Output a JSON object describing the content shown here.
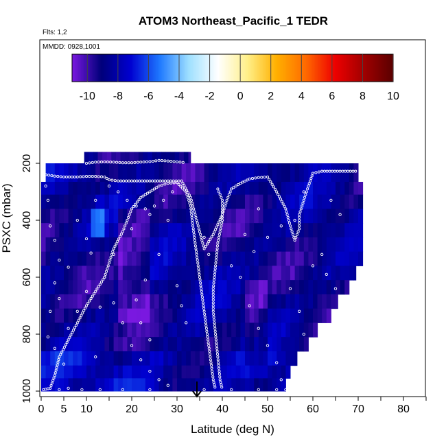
{
  "chart_data": {
    "type": "heatmap",
    "title": "ATOM3 Northeast_Pacific_1 TEDR",
    "subtitle_flights": "Flts: 1,2",
    "subtitle_dates": "MMDD: 0928,1001",
    "xlabel": "Latitude (deg N)",
    "ylabel": "PSXC (mbar)",
    "xlim": [
      0,
      85
    ],
    "ylim": [
      1000,
      100
    ],
    "x_ticks": [
      0,
      5,
      10,
      20,
      30,
      40,
      50,
      60,
      70,
      80
    ],
    "x_tick_labels": [
      "0",
      "5",
      "10",
      "20",
      "30",
      "40",
      "50",
      "60",
      "70",
      "80"
    ],
    "x_minor_ticks": [
      15,
      25,
      35,
      45,
      55,
      65,
      75,
      85
    ],
    "y_ticks": [
      200,
      400,
      600,
      800,
      1000
    ],
    "y_tick_labels": [
      "200",
      "400",
      "600",
      "800",
      "1000"
    ],
    "colorbar": {
      "range": [
        -11,
        10
      ],
      "ticks": [
        -10,
        -8,
        -6,
        -4,
        -2,
        0,
        2,
        4,
        6,
        8,
        10
      ],
      "tick_labels": [
        "-10",
        "-8",
        "-6",
        "-4",
        "-2",
        "0",
        "2",
        "4",
        "6",
        "8",
        "10"
      ],
      "colors": [
        "#7a18e0",
        "#00007a",
        "#0000d0",
        "#1e78ff",
        "#9ee0ff",
        "#ffffff",
        "#fff08a",
        "#ffb000",
        "#ff6a00",
        "#ee0000",
        "#a00000",
        "#5a0000"
      ]
    },
    "layers": [
      {
        "p": [
          160,
          200
        ],
        "xmax": 33,
        "xmin": 9.5
      },
      {
        "p": [
          200,
          265
        ],
        "xmax": 70,
        "xmin": 1
      },
      {
        "p": [
          265,
          310
        ],
        "xmax": 71
      },
      {
        "p": [
          310,
          360
        ],
        "xmax": 71
      },
      {
        "p": [
          360,
          410
        ],
        "xmax": 71
      },
      {
        "p": [
          410,
          460
        ],
        "xmax": 71
      },
      {
        "p": [
          460,
          510
        ],
        "xmax": 71
      },
      {
        "p": [
          510,
          560
        ],
        "xmax": 71
      },
      {
        "p": [
          560,
          610
        ],
        "xmax": 69.5
      },
      {
        "p": [
          610,
          660
        ],
        "xmax": 68
      },
      {
        "p": [
          660,
          710
        ],
        "xmax": 65.5
      },
      {
        "p": [
          710,
          760
        ],
        "xmax": 64
      },
      {
        "p": [
          760,
          810
        ],
        "xmax": 61
      },
      {
        "p": [
          810,
          860
        ],
        "xmax": 59
      },
      {
        "p": [
          860,
          910
        ],
        "xmax": 56.5
      },
      {
        "p": [
          910,
          955
        ],
        "xmax": 55
      },
      {
        "p": [
          955,
          1000
        ],
        "xmax": 54
      }
    ],
    "flight_tracks": [
      {
        "name": "flight-1-track",
        "points": [
          [
            0.5,
            995
          ],
          [
            2,
            990
          ],
          [
            3,
            945
          ],
          [
            4,
            880
          ],
          [
            6,
            820
          ],
          [
            8,
            760
          ],
          [
            10,
            700
          ],
          [
            12,
            650
          ],
          [
            14,
            600
          ],
          [
            15,
            550
          ],
          [
            16,
            500
          ],
          [
            18,
            440
          ],
          [
            19,
            400
          ],
          [
            20,
            360
          ],
          [
            22,
            320
          ],
          [
            24,
            300
          ],
          [
            26,
            280
          ],
          [
            28,
            270
          ],
          [
            30,
            268
          ],
          [
            32,
            300
          ],
          [
            33,
            350
          ],
          [
            33.5,
            420
          ],
          [
            34,
            480
          ],
          [
            34.5,
            540
          ],
          [
            35,
            600
          ],
          [
            35.5,
            660
          ],
          [
            36,
            720
          ],
          [
            36.5,
            780
          ],
          [
            37,
            840
          ],
          [
            37.5,
            900
          ],
          [
            38,
            960
          ],
          [
            38.5,
            995
          ]
        ]
      },
      {
        "name": "flight-2-track",
        "points": [
          [
            1,
            240
          ],
          [
            3,
            245
          ],
          [
            5,
            248
          ],
          [
            8,
            248
          ],
          [
            10,
            246
          ],
          [
            12,
            246
          ],
          [
            14,
            248
          ],
          [
            15,
            258
          ],
          [
            17,
            262
          ],
          [
            20,
            262
          ],
          [
            24,
            262
          ],
          [
            28,
            262
          ],
          [
            31,
            262
          ],
          [
            33,
            320
          ],
          [
            34,
            380
          ],
          [
            35,
            440
          ],
          [
            36,
            500
          ],
          [
            38,
            450
          ],
          [
            40,
            380
          ],
          [
            41,
            330
          ],
          [
            42,
            290
          ],
          [
            44,
            270
          ],
          [
            46,
            255
          ],
          [
            48,
            250
          ],
          [
            50,
            248
          ],
          [
            52,
            300
          ],
          [
            54,
            360
          ],
          [
            55,
            420
          ],
          [
            56,
            470
          ],
          [
            57,
            430
          ],
          [
            57,
            380
          ],
          [
            58,
            330
          ],
          [
            59,
            280
          ],
          [
            60,
            235
          ],
          [
            62,
            228
          ],
          [
            66,
            228
          ],
          [
            70,
            228
          ]
        ]
      },
      {
        "name": "flight-2-upper-track",
        "points": [
          [
            10,
            200
          ],
          [
            12,
            196
          ],
          [
            14,
            195
          ],
          [
            16,
            196
          ],
          [
            18,
            198
          ],
          [
            20,
            198
          ],
          [
            22,
            196
          ],
          [
            24,
            194
          ],
          [
            26,
            190
          ],
          [
            28,
            192
          ],
          [
            30,
            195
          ],
          [
            32,
            198
          ]
        ]
      },
      {
        "name": "flight-3-track",
        "points": [
          [
            39,
            290
          ],
          [
            40,
            330
          ],
          [
            40,
            400
          ],
          [
            39,
            480
          ],
          [
            38.5,
            560
          ],
          [
            38,
            640
          ],
          [
            38,
            720
          ],
          [
            38.5,
            800
          ],
          [
            39,
            880
          ],
          [
            39.5,
            960
          ],
          [
            40,
            995
          ]
        ]
      }
    ],
    "scatter_points": [
      [
        1,
        280
      ],
      [
        1.5,
        330
      ],
      [
        2,
        420
      ],
      [
        3,
        470
      ],
      [
        4,
        540
      ],
      [
        3,
        620
      ],
      [
        2,
        720
      ],
      [
        1.5,
        810
      ],
      [
        3,
        850
      ],
      [
        5,
        905
      ],
      [
        6,
        990
      ],
      [
        4,
        995
      ],
      [
        9,
        995
      ],
      [
        13,
        995
      ],
      [
        18,
        995
      ],
      [
        24,
        995
      ],
      [
        36,
        995
      ],
      [
        42,
        995
      ],
      [
        48,
        995
      ],
      [
        52,
        995
      ],
      [
        54,
        995
      ],
      [
        8,
        400
      ],
      [
        10,
        465
      ],
      [
        11,
        515
      ],
      [
        14,
        600
      ],
      [
        16,
        690
      ],
      [
        18,
        760
      ],
      [
        20,
        840
      ],
      [
        22,
        890
      ],
      [
        24,
        930
      ],
      [
        26,
        960
      ],
      [
        28,
        980
      ],
      [
        6,
        565
      ],
      [
        4,
        675
      ],
      [
        12,
        880
      ],
      [
        16,
        520
      ],
      [
        20,
        430
      ],
      [
        24,
        380
      ],
      [
        27,
        330
      ],
      [
        29,
        300
      ],
      [
        44,
        600
      ],
      [
        46,
        700
      ],
      [
        48,
        780
      ],
      [
        50,
        840
      ],
      [
        52,
        900
      ],
      [
        53,
        960
      ],
      [
        47,
        510
      ],
      [
        50,
        460
      ],
      [
        53,
        420
      ],
      [
        58,
        300
      ],
      [
        56,
        400
      ],
      [
        55,
        640
      ],
      [
        57,
        720
      ],
      [
        58,
        800
      ],
      [
        60,
        860
      ],
      [
        62,
        520
      ],
      [
        63,
        590
      ],
      [
        65,
        640
      ],
      [
        68,
        700
      ],
      [
        66,
        380
      ],
      [
        64,
        330
      ],
      [
        60,
        560
      ],
      [
        42,
        560
      ],
      [
        45,
        450
      ],
      [
        48,
        360
      ],
      [
        36,
        460
      ],
      [
        37,
        520
      ],
      [
        30,
        630
      ],
      [
        31,
        700
      ],
      [
        32,
        760
      ],
      [
        26,
        520
      ],
      [
        23,
        610
      ],
      [
        21,
        680
      ],
      [
        22,
        760
      ],
      [
        24,
        820
      ],
      [
        10,
        650
      ],
      [
        13,
        705
      ],
      [
        8,
        720
      ],
      [
        6,
        780
      ],
      [
        12,
        330
      ],
      [
        15,
        280
      ],
      [
        17,
        300
      ],
      [
        19,
        330
      ],
      [
        21,
        350
      ],
      [
        23,
        360
      ],
      [
        25,
        350
      ],
      [
        28,
        400
      ]
    ]
  }
}
